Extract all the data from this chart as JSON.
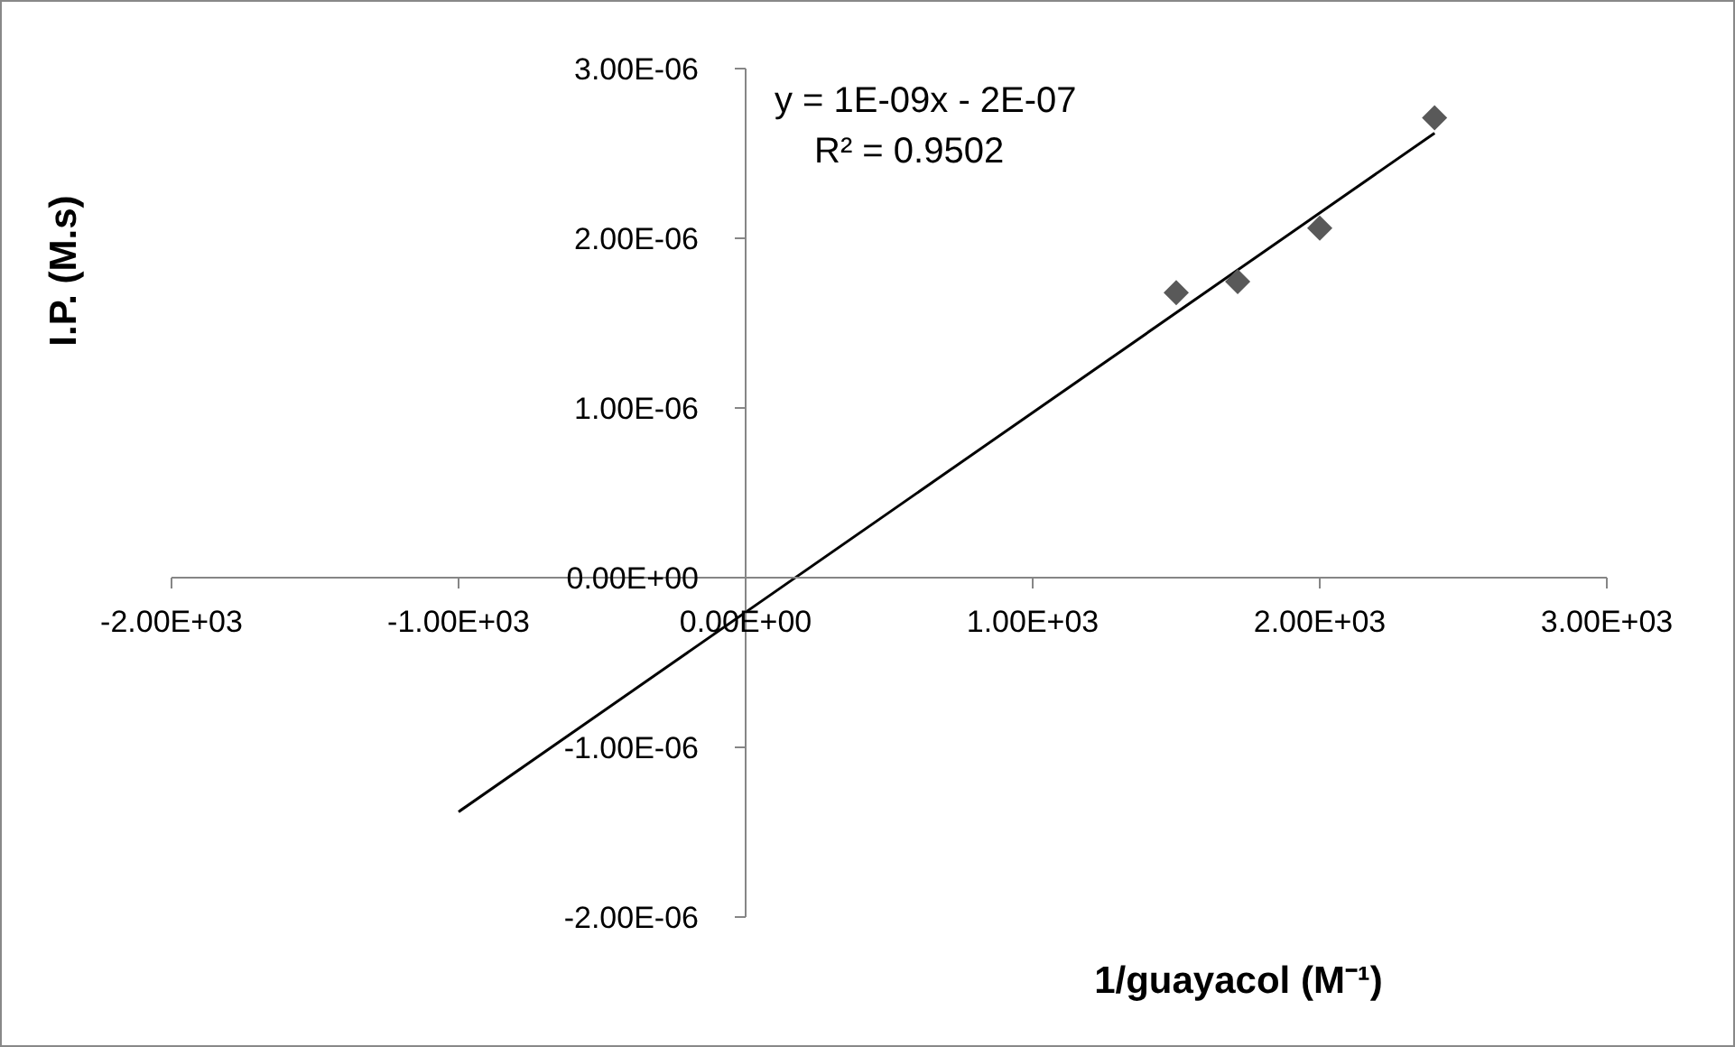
{
  "chart_data": {
    "type": "scatter",
    "xlabel": "1/guayacol (M⁻¹)",
    "ylabel": "I.P. (M.s)",
    "annotations": [
      "y = 1E-09x - 2E-07",
      "R² = 0.9502"
    ],
    "series": [
      {
        "color": "#595959",
        "marker": "diamond",
        "x": [
          1500,
          1714,
          2000,
          2400
        ],
        "values": [
          1.68e-06,
          1.745e-06,
          2.06e-06,
          2.71e-06
        ]
      },
      {
        "type": "line",
        "color": "#000000",
        "marker": "none",
        "x": [
          -1000,
          2400
        ],
        "values": [
          -1.38e-06,
          2.62e-06
        ]
      }
    ],
    "xlim": [
      -2000,
      3000
    ],
    "ylim": [
      -2e-06,
      3e-06
    ],
    "xticks": [
      {
        "value": -2000,
        "label": "-2.00E+03"
      },
      {
        "value": -1000,
        "label": "-1.00E+03"
      },
      {
        "value": 0,
        "label": "0.00E+00"
      },
      {
        "value": 1000,
        "label": "1.00E+03"
      },
      {
        "value": 2000,
        "label": "2.00E+03"
      },
      {
        "value": 3000,
        "label": "3.00E+03"
      }
    ],
    "yticks": [
      {
        "value": -2e-06,
        "label": "-2.00E-06"
      },
      {
        "value": -1e-06,
        "label": "-1.00E-06"
      },
      {
        "value": 0,
        "label": "0.00E+00"
      },
      {
        "value": 1e-06,
        "label": "1.00E-06"
      },
      {
        "value": 2e-06,
        "label": "2.00E-06"
      },
      {
        "value": 3e-06,
        "label": "3.00E-06"
      }
    ],
    "grid": false,
    "legend": false
  }
}
